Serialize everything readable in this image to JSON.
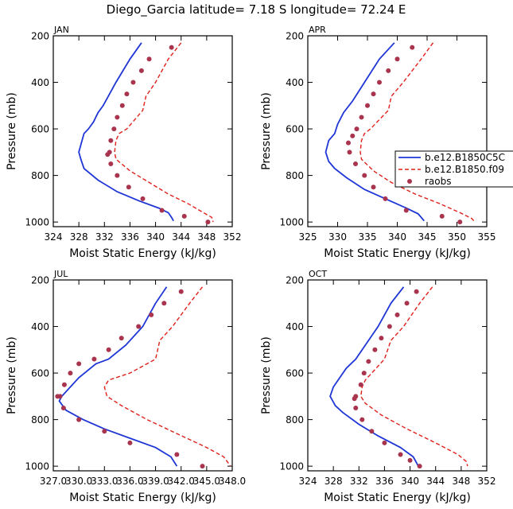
{
  "figure": {
    "title": "Diego_Garcia   latitude= 7.18 S longitude= 72.24 E"
  },
  "legend": {
    "entries": [
      "b.e12.B1850C5C",
      "b.e12.B1850.f09",
      "raobs"
    ]
  },
  "colors": {
    "series1": "#1f36d6",
    "series2": "#e0201a",
    "raobs": "#a8344e",
    "axes": "#000000"
  },
  "chart_data": [
    {
      "type": "line",
      "panel_label": "JAN",
      "xlabel": "Moist Static Energy (kJ/kg)",
      "ylabel": "Pressure (mb)",
      "xlim": [
        324,
        352
      ],
      "ylim": [
        1020,
        200
      ],
      "xticks": [
        324,
        328,
        332,
        336,
        340,
        344,
        348,
        352
      ],
      "xtick_labels": [
        "324",
        "328",
        "332",
        "336",
        "340",
        "344",
        "348",
        "352"
      ],
      "yticks": [
        200,
        400,
        600,
        800,
        1000
      ],
      "ytick_labels": [
        "200",
        "400",
        "600",
        "800",
        "1000"
      ],
      "series": [
        {
          "name": "b.e12.B1850C5C",
          "style": "solid",
          "x": [
            337.8,
            336.0,
            333.8,
            331.8,
            331.0,
            330.3,
            329.5,
            328.8,
            328.0,
            328.3,
            328.8,
            331.0,
            334.0,
            337.5,
            340.5,
            342.0,
            342.5,
            342.8
          ],
          "y": [
            230,
            300,
            400,
            500,
            530,
            570,
            600,
            620,
            700,
            730,
            770,
            820,
            870,
            910,
            940,
            960,
            980,
            995
          ]
        },
        {
          "name": "b.e12.B1850.f09",
          "style": "dashed",
          "x": [
            344.0,
            342.0,
            340.0,
            338.5,
            338.0,
            335.5,
            334.3,
            333.8,
            333.6,
            333.8,
            336.0,
            339.0,
            342.0,
            345.0,
            347.5,
            348.8,
            349.0
          ],
          "y": [
            230,
            300,
            400,
            460,
            520,
            600,
            620,
            650,
            700,
            730,
            780,
            830,
            880,
            920,
            960,
            980,
            1000
          ]
        },
        {
          "name": "raobs",
          "style": "markers",
          "x": [
            342.5,
            339.0,
            337.8,
            336.5,
            335.5,
            334.8,
            334.0,
            333.5,
            333.0,
            332.8,
            332.5,
            333.0,
            334.0,
            335.8,
            338.0,
            341.0,
            344.5,
            348.2
          ],
          "y": [
            250,
            300,
            350,
            400,
            450,
            500,
            550,
            600,
            650,
            700,
            710,
            750,
            800,
            850,
            900,
            950,
            975,
            1000
          ]
        }
      ]
    },
    {
      "type": "line",
      "panel_label": "APR",
      "xlabel": "Moist Static Energy (kJ/kg)",
      "ylabel": "Pressure (mb)",
      "xlim": [
        325,
        355
      ],
      "ylim": [
        1020,
        200
      ],
      "xticks": [
        325,
        330,
        335,
        340,
        345,
        350,
        355
      ],
      "xtick_labels": [
        "325",
        "330",
        "335",
        "340",
        "345",
        "350",
        "355"
      ],
      "yticks": [
        200,
        400,
        600,
        800,
        1000
      ],
      "ytick_labels": [
        "200",
        "400",
        "600",
        "800",
        "1000"
      ],
      "series": [
        {
          "name": "b.e12.B1850C5C",
          "style": "solid",
          "x": [
            339.5,
            337.0,
            334.5,
            332.5,
            331.0,
            330.0,
            329.5,
            328.5,
            328.0,
            328.5,
            329.5,
            331.5,
            334.5,
            338.0,
            341.5,
            343.5,
            344.5
          ],
          "y": [
            230,
            300,
            400,
            480,
            530,
            580,
            620,
            650,
            700,
            740,
            770,
            810,
            860,
            900,
            940,
            965,
            995
          ]
        },
        {
          "name": "b.e12.B1850.f09",
          "style": "dashed",
          "x": [
            346.0,
            344.0,
            341.0,
            339.0,
            338.5,
            335.5,
            334.5,
            334.0,
            333.8,
            334.0,
            336.0,
            339.0,
            343.0,
            347.0,
            350.5,
            352.5,
            353.0
          ],
          "y": [
            230,
            300,
            400,
            460,
            520,
            600,
            620,
            650,
            700,
            730,
            780,
            830,
            880,
            920,
            960,
            985,
            1000
          ]
        },
        {
          "name": "raobs",
          "style": "markers",
          "x": [
            342.5,
            340.0,
            338.5,
            337.0,
            336.0,
            335.0,
            334.0,
            333.2,
            332.5,
            331.8,
            332.0,
            333.0,
            334.5,
            336.0,
            338.0,
            341.5,
            347.5,
            350.5
          ],
          "y": [
            250,
            300,
            350,
            400,
            450,
            500,
            550,
            600,
            630,
            660,
            700,
            750,
            800,
            850,
            900,
            950,
            975,
            1000
          ]
        }
      ]
    },
    {
      "type": "line",
      "panel_label": "JUL",
      "xlabel": "Moist Static Energy (kJ/kg)",
      "ylabel": "Pressure (mb)",
      "xlim": [
        327.0,
        348.0
      ],
      "ylim": [
        1020,
        200
      ],
      "xticks": [
        327,
        330,
        333,
        336,
        339,
        342,
        345,
        348
      ],
      "xtick_labels": [
        "327.0",
        "330.0",
        "333.0",
        "336.0",
        "339.0",
        "342.0",
        "345.0",
        "348.0"
      ],
      "yticks": [
        200,
        400,
        600,
        800,
        1000
      ],
      "ytick_labels": [
        "200",
        "400",
        "600",
        "800",
        "1000"
      ],
      "series": [
        {
          "name": "b.e12.B1850C5C",
          "style": "solid",
          "x": [
            340.3,
            339.0,
            337.5,
            335.5,
            333.5,
            332.0,
            330.0,
            328.0,
            327.7,
            328.5,
            330.5,
            333.0,
            336.0,
            339.0,
            340.8,
            341.5
          ],
          "y": [
            230,
            300,
            400,
            480,
            540,
            560,
            620,
            700,
            720,
            760,
            800,
            840,
            880,
            920,
            960,
            1000
          ]
        },
        {
          "name": "b.e12.B1850.f09",
          "style": "dashed",
          "x": [
            344.5,
            343.0,
            341.0,
            339.5,
            339.0,
            336.0,
            333.5,
            333.0,
            333.3,
            335.0,
            338.0,
            341.5,
            345.0,
            347.0,
            347.8
          ],
          "y": [
            230,
            300,
            400,
            460,
            540,
            600,
            630,
            660,
            700,
            740,
            800,
            860,
            920,
            960,
            1000
          ]
        },
        {
          "name": "raobs",
          "style": "markers",
          "x": [
            342.0,
            340.0,
            338.5,
            337.0,
            335.0,
            333.5,
            331.8,
            330.0,
            329.0,
            328.3,
            327.8,
            327.5,
            328.2,
            330.0,
            333.0,
            336.0,
            341.5,
            344.5
          ],
          "y": [
            250,
            300,
            350,
            400,
            450,
            500,
            540,
            560,
            600,
            650,
            700,
            700,
            750,
            800,
            850,
            900,
            950,
            1000
          ]
        }
      ]
    },
    {
      "type": "line",
      "panel_label": "OCT",
      "xlabel": "Moist Static Energy (kJ/kg)",
      "ylabel": "Pressure (mb)",
      "xlim": [
        324,
        352
      ],
      "ylim": [
        1020,
        200
      ],
      "xticks": [
        324,
        328,
        332,
        336,
        340,
        344,
        348,
        352
      ],
      "xtick_labels": [
        "324",
        "328",
        "332",
        "336",
        "340",
        "344",
        "348",
        "352"
      ],
      "yticks": [
        200,
        400,
        600,
        800,
        1000
      ],
      "ytick_labels": [
        "200",
        "400",
        "600",
        "800",
        "1000"
      ],
      "series": [
        {
          "name": "b.e12.B1850C5C",
          "style": "solid",
          "x": [
            339.0,
            337.0,
            335.0,
            333.0,
            331.5,
            330.0,
            329.0,
            328.0,
            327.5,
            328.3,
            329.5,
            332.0,
            335.0,
            338.5,
            340.5,
            341.3
          ],
          "y": [
            230,
            300,
            400,
            480,
            540,
            580,
            620,
            660,
            700,
            740,
            770,
            820,
            870,
            920,
            960,
            1000
          ]
        },
        {
          "name": "b.e12.B1850.f09",
          "style": "dashed",
          "x": [
            343.5,
            341.5,
            339.0,
            337.0,
            336.0,
            334.0,
            333.0,
            332.5,
            332.3,
            333.0,
            335.5,
            339.5,
            344.0,
            347.5,
            348.8,
            349.0
          ],
          "y": [
            230,
            300,
            400,
            460,
            540,
            600,
            630,
            660,
            700,
            730,
            780,
            840,
            900,
            950,
            980,
            1000
          ]
        },
        {
          "name": "raobs",
          "style": "markers",
          "x": [
            341.0,
            339.5,
            338.0,
            336.8,
            335.5,
            334.5,
            333.5,
            332.8,
            332.3,
            331.5,
            331.3,
            331.5,
            332.5,
            334.0,
            336.0,
            338.5,
            340.0,
            341.5
          ],
          "y": [
            250,
            300,
            350,
            400,
            450,
            500,
            550,
            600,
            650,
            700,
            710,
            750,
            800,
            850,
            900,
            950,
            975,
            1000
          ]
        }
      ]
    }
  ]
}
